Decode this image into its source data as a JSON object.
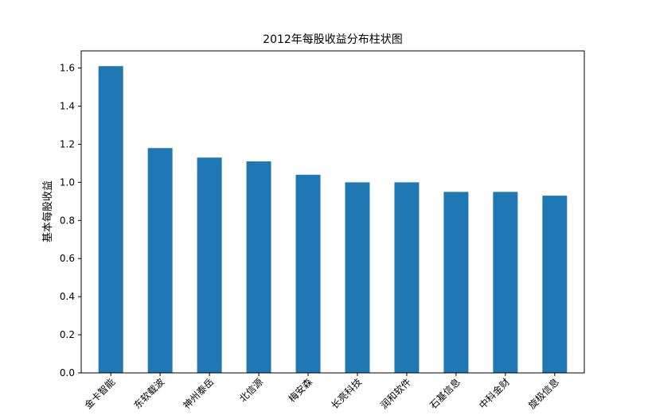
{
  "chart_data": {
    "type": "bar",
    "title": "2012年每股收益分布柱状图",
    "xlabel": "",
    "ylabel": "基本每股收益",
    "categories": [
      "金卡智能",
      "东软载波",
      "神州泰岳",
      "北信源",
      "梅安森",
      "长亮科技",
      "润和软件",
      "石基信息",
      "中科金财",
      "旋极信息"
    ],
    "values": [
      1.61,
      1.18,
      1.13,
      1.11,
      1.04,
      1.0,
      1.0,
      0.95,
      0.95,
      0.93
    ],
    "ylim": [
      0,
      1.69
    ],
    "yticks": [
      "0.0",
      "0.2",
      "0.4",
      "0.6",
      "0.8",
      "1.0",
      "1.2",
      "1.4",
      "1.6"
    ],
    "bar_color": "#1f77b4",
    "grid": false,
    "legend": "none"
  }
}
